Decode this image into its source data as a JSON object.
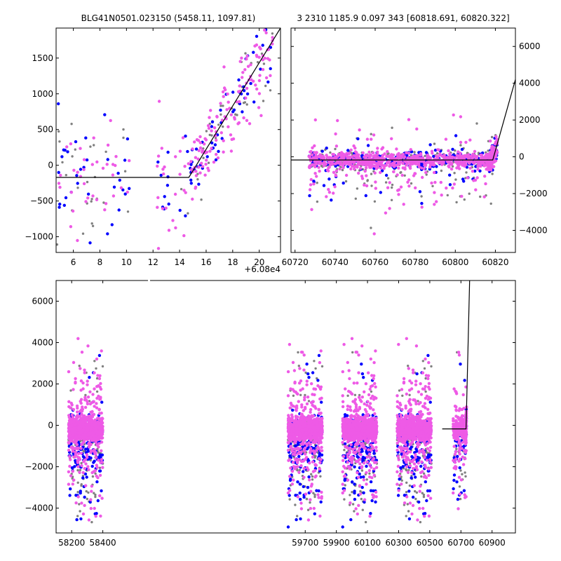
{
  "chart_data": [
    {
      "panel": "top-left",
      "type": "scatter",
      "title": "BLG41N0501.023150 (5458.11, 1097.81)",
      "offset_label": "+6.08e4",
      "xlim": [
        4.7,
        21.6
      ],
      "ylim": [
        -1220,
        1920
      ],
      "xticks": [
        6,
        8,
        10,
        12,
        14,
        16,
        18,
        20
      ],
      "yticks": [
        -1000,
        -500,
        0,
        500,
        1000,
        1500
      ],
      "model_line": [
        [
          4.7,
          -170
        ],
        [
          14.7,
          -170
        ],
        [
          21.6,
          1920
        ]
      ],
      "series": [
        {
          "name": "grey",
          "color": "#808080"
        },
        {
          "name": "blue",
          "color": "#0000ff"
        },
        {
          "name": "magenta",
          "color": "#ee5ae6"
        }
      ]
    },
    {
      "panel": "top-right",
      "type": "scatter",
      "title": "3 2310 1185.9 0.097 343 [60818.691, 60820.322]",
      "xlim": [
        60718,
        60830
      ],
      "ylim": [
        -5200,
        7000
      ],
      "xticks": [
        60720,
        60740,
        60760,
        60780,
        60800,
        60820
      ],
      "yticks": [
        -4000,
        -2000,
        0,
        2000,
        4000,
        6000
      ],
      "model_line": [
        [
          60718,
          -170
        ],
        [
          60818.7,
          -170
        ],
        [
          60830,
          4200
        ]
      ],
      "series": [
        {
          "name": "grey",
          "color": "#808080"
        },
        {
          "name": "blue",
          "color": "#0000ff"
        },
        {
          "name": "magenta",
          "color": "#ee5ae6"
        }
      ]
    },
    {
      "panel": "bottom",
      "type": "scatter",
      "xlim": [
        58100,
        61050
      ],
      "ylim": [
        -5200,
        7000
      ],
      "xticks": [
        58200,
        58400,
        59700,
        59900,
        60100,
        60300,
        60500,
        60700,
        60900
      ],
      "yticks": [
        -4000,
        -2000,
        0,
        2000,
        4000,
        6000
      ],
      "seasons": [
        {
          "start": 58180,
          "end": 58400
        },
        {
          "start": 59590,
          "end": 59810
        },
        {
          "start": 59940,
          "end": 60160
        },
        {
          "start": 60290,
          "end": 60510
        },
        {
          "start": 60650,
          "end": 60735
        }
      ],
      "model_line": [
        [
          60580,
          -170
        ],
        [
          60733,
          -170
        ],
        [
          60756,
          7000
        ]
      ],
      "series": [
        {
          "name": "grey",
          "color": "#808080"
        },
        {
          "name": "blue",
          "color": "#0000ff"
        },
        {
          "name": "magenta",
          "color": "#ee5ae6"
        }
      ]
    }
  ]
}
